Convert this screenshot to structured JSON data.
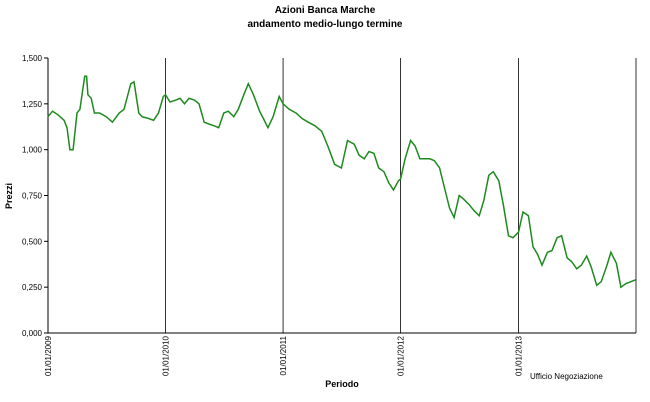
{
  "chart_data": {
    "type": "line",
    "title": "Azioni Banca Marche",
    "subtitle": "andamento medio-lungo termine",
    "xlabel": "Periodo",
    "ylabel": "Prezzi",
    "note": "Ufficio Negoziazione",
    "ylim": [
      0,
      1.5
    ],
    "yticks": [
      "0,000",
      "0,250",
      "0,500",
      "0,750",
      "1,000",
      "1,250",
      "1,500"
    ],
    "xlim": [
      "2009-01-01",
      "2014-01-01"
    ],
    "xticks": [
      "01/01/2009",
      "01/01/2010",
      "01/01/2011",
      "01/01/2012",
      "01/01/2013"
    ],
    "grid": "vertical lines at each year",
    "series_color": "#1e8a1e",
    "series": [
      {
        "x": [
          "2009-01-01",
          "2009-01-15",
          "2009-02-01",
          "2009-02-20",
          "2009-03-01",
          "2009-03-10",
          "2009-03-20",
          "2009-04-01",
          "2009-04-10",
          "2009-04-25",
          "2009-05-01",
          "2009-05-05",
          "2009-05-15",
          "2009-05-25",
          "2009-06-10",
          "2009-07-01",
          "2009-07-20",
          "2009-08-10",
          "2009-08-25",
          "2009-09-15",
          "2009-09-25",
          "2009-10-10",
          "2009-10-20",
          "2009-11-10",
          "2009-11-25",
          "2009-12-10",
          "2009-12-25",
          "2010-01-01",
          "2010-01-15",
          "2010-02-01",
          "2010-02-15",
          "2010-03-01",
          "2010-03-15",
          "2010-04-01",
          "2010-04-15",
          "2010-05-01",
          "2010-05-15",
          "2010-06-01",
          "2010-06-15",
          "2010-07-01",
          "2010-07-15",
          "2010-08-01",
          "2010-08-15",
          "2010-09-01",
          "2010-09-15",
          "2010-10-01",
          "2010-10-20",
          "2010-11-01",
          "2010-11-15",
          "2010-12-01",
          "2010-12-20",
          "2011-01-01",
          "2011-01-20",
          "2011-02-10",
          "2011-03-01",
          "2011-03-20",
          "2011-04-10",
          "2011-05-01",
          "2011-05-20",
          "2011-06-10",
          "2011-07-01",
          "2011-07-20",
          "2011-08-10",
          "2011-08-25",
          "2011-09-10",
          "2011-09-25",
          "2011-10-10",
          "2011-10-25",
          "2011-11-10",
          "2011-11-25",
          "2011-12-10",
          "2011-12-25",
          "2012-01-01",
          "2012-01-15",
          "2012-02-01",
          "2012-02-15",
          "2012-03-01",
          "2012-03-15",
          "2012-04-01",
          "2012-04-15",
          "2012-05-01",
          "2012-05-15",
          "2012-06-01",
          "2012-06-15",
          "2012-07-01",
          "2012-07-15",
          "2012-08-01",
          "2012-08-15",
          "2012-09-01",
          "2012-09-15",
          "2012-10-01",
          "2012-10-15",
          "2012-11-01",
          "2012-11-15",
          "2012-12-01",
          "2012-12-15",
          "2013-01-01",
          "2013-01-15",
          "2013-02-01",
          "2013-02-15",
          "2013-03-01",
          "2013-03-15",
          "2013-04-01",
          "2013-04-15",
          "2013-05-01",
          "2013-05-15",
          "2013-06-01",
          "2013-06-15",
          "2013-07-01",
          "2013-07-15",
          "2013-08-01",
          "2013-08-15",
          "2013-09-01",
          "2013-09-15",
          "2013-10-01",
          "2013-10-15",
          "2013-11-01",
          "2013-11-15",
          "2013-12-01",
          "2013-12-31"
        ],
        "values": [
          1.18,
          1.21,
          1.19,
          1.16,
          1.12,
          1.0,
          1.0,
          1.2,
          1.22,
          1.4,
          1.4,
          1.3,
          1.28,
          1.2,
          1.2,
          1.18,
          1.15,
          1.2,
          1.22,
          1.36,
          1.37,
          1.2,
          1.18,
          1.17,
          1.16,
          1.2,
          1.29,
          1.3,
          1.26,
          1.27,
          1.28,
          1.25,
          1.28,
          1.27,
          1.25,
          1.15,
          1.14,
          1.13,
          1.12,
          1.2,
          1.21,
          1.18,
          1.22,
          1.3,
          1.36,
          1.3,
          1.21,
          1.17,
          1.12,
          1.18,
          1.29,
          1.25,
          1.22,
          1.2,
          1.17,
          1.15,
          1.13,
          1.1,
          1.02,
          0.92,
          0.9,
          1.05,
          1.03,
          0.97,
          0.95,
          0.99,
          0.98,
          0.9,
          0.88,
          0.82,
          0.78,
          0.83,
          0.84,
          0.95,
          1.05,
          1.02,
          0.95,
          0.95,
          0.95,
          0.94,
          0.9,
          0.8,
          0.68,
          0.63,
          0.75,
          0.73,
          0.7,
          0.67,
          0.64,
          0.72,
          0.86,
          0.88,
          0.83,
          0.7,
          0.53,
          0.52,
          0.55,
          0.66,
          0.64,
          0.47,
          0.43,
          0.37,
          0.44,
          0.45,
          0.52,
          0.53,
          0.41,
          0.39,
          0.35,
          0.37,
          0.42,
          0.36,
          0.26,
          0.28,
          0.36,
          0.44,
          0.38,
          0.25,
          0.27,
          0.29
        ]
      }
    ]
  }
}
